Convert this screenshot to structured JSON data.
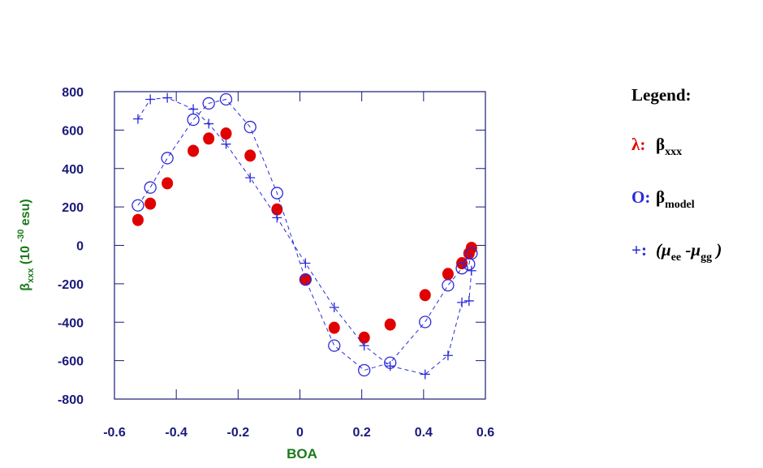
{
  "chart_data": {
    "type": "scatter",
    "xlabel": "BOA",
    "ylabel": [
      "β",
      "xxx",
      " (10 ",
      "-30",
      " esu)"
    ],
    "legend_title": "Legend:",
    "x": [
      -0.524,
      -0.484,
      -0.429,
      -0.345,
      -0.295,
      -0.239,
      -0.161,
      -0.074,
      0.018,
      0.111,
      0.208,
      0.292,
      0.405,
      0.479,
      0.524,
      0.547,
      0.555
    ],
    "series": [
      {
        "symbol": "λ:",
        "name": [
          "β",
          "xxx"
        ],
        "color": "#e00000",
        "marker": "filled-circle",
        "line": "none",
        "values": [
          132,
          217,
          323,
          492,
          556,
          582,
          467,
          187,
          -178,
          -429,
          -480,
          -412,
          -259,
          -149,
          -93,
          -42,
          -13
        ]
      },
      {
        "symbol": "O:",
        "name": [
          "β",
          "model"
        ],
        "color": "#2a2ad8",
        "marker": "open-circle",
        "line": "dashed",
        "values": [
          208,
          301,
          454,
          654,
          739,
          760,
          616,
          272,
          -178,
          -522,
          -650,
          -611,
          -399,
          -208,
          -119,
          -98,
          -42
        ]
      },
      {
        "symbol": "+:",
        "name": [
          "(μ",
          "ee",
          " -μ",
          "gg",
          " )"
        ],
        "color": "#2a2ad8",
        "marker": "plus",
        "line": "dashed",
        "values": [
          658,
          760,
          768,
          709,
          633,
          527,
          352,
          144,
          -93,
          -323,
          -522,
          -628,
          -671,
          -573,
          -297,
          -289,
          -132
        ]
      }
    ],
    "xlim": [
      -0.6,
      0.6
    ],
    "xticks": [
      -0.6,
      -0.4,
      -0.2,
      0,
      0.2,
      0.4,
      0.6
    ],
    "ylim": [
      -800,
      800
    ],
    "yticks": [
      -800,
      -600,
      -400,
      -200,
      0,
      200,
      400,
      600,
      800
    ]
  }
}
